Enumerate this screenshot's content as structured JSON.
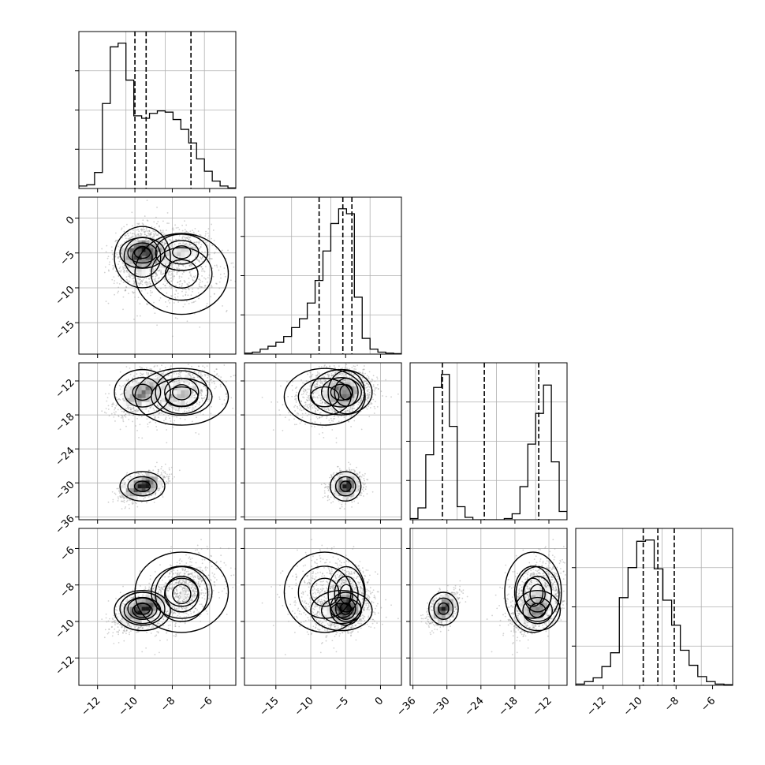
{
  "chart_data": {
    "type": "corner",
    "parameters": 4,
    "grid": true,
    "ranges": [
      [
        -13.0,
        -4.6
      ],
      [
        -19.5,
        3.0
      ],
      [
        -36.5,
        -8.8
      ],
      [
        -13.5,
        -4.9
      ]
    ],
    "ticks": [
      [
        -12,
        -10,
        -8,
        -6
      ],
      [
        -15,
        -10,
        -5,
        0
      ],
      [
        -36,
        -30,
        -24,
        -18,
        -12
      ],
      [
        -12,
        -10,
        -8,
        -6
      ]
    ],
    "tick_labels": [
      [
        "−12",
        "−10",
        "−8",
        "−6"
      ],
      [
        "−15",
        "−10",
        "−5",
        "0"
      ],
      [
        "−36",
        "−30",
        "−24",
        "−18",
        "−12"
      ],
      [
        "−12",
        "−10",
        "−8",
        "−6"
      ]
    ],
    "quantiles": [
      [
        -10.0,
        -9.4,
        -7.0
      ],
      [
        -8.8,
        -5.4,
        -4.1
      ],
      [
        -30.8,
        -23.4,
        -13.8
      ],
      [
        -9.8,
        -9.0,
        -8.1
      ]
    ],
    "histograms": [
      {
        "edges_start": -13.0,
        "edges_end": -4.6,
        "counts": [
          0.2,
          0.3,
          1.3,
          6.9,
          11.5,
          11.8,
          8.8,
          5.9,
          5.7,
          6.1,
          6.3,
          6.2,
          5.6,
          4.8,
          3.7,
          2.4,
          1.4,
          0.6,
          0.2,
          0.05
        ]
      },
      {
        "edges_start": -19.5,
        "edges_end": 3.0,
        "counts": [
          0.1,
          0.2,
          0.5,
          0.8,
          1.2,
          1.8,
          2.7,
          3.6,
          5.2,
          7.5,
          10.5,
          13.3,
          14.8,
          14.3,
          5.8,
          1.6,
          0.5,
          0.2,
          0.1,
          0.05
        ]
      },
      {
        "edges_start": -36.5,
        "edges_end": -8.8,
        "counts": [
          0.1,
          1.0,
          5.5,
          11.2,
          12.3,
          7.9,
          1.1,
          0.2,
          0.0,
          0.0,
          0.0,
          0.0,
          0.1,
          0.5,
          2.8,
          6.4,
          9.0,
          11.4,
          4.9,
          0.7
        ]
      },
      {
        "edges_start": -13.5,
        "edges_end": -4.9,
        "counts": [
          0.1,
          0.3,
          0.6,
          1.5,
          2.6,
          7.0,
          9.4,
          11.5,
          11.6,
          9.3,
          6.8,
          4.8,
          2.8,
          1.6,
          0.7,
          0.3,
          0.1,
          0.05
        ]
      }
    ],
    "clusters": [
      {
        "mean": [
          -9.6,
          -5.6,
          -14.0,
          -9.4
        ],
        "sd": [
          0.75,
          2.2,
          2.0,
          0.55
        ],
        "weight": 0.36
      },
      {
        "mean": [
          -7.5,
          -8.0,
          -14.8,
          -8.4
        ],
        "sd": [
          1.25,
          2.9,
          2.5,
          1.1
        ],
        "weight": 0.14
      },
      {
        "mean": [
          -9.6,
          -5.0,
          -30.6,
          -9.3
        ],
        "sd": [
          0.6,
          1.1,
          1.3,
          0.45
        ],
        "weight": 0.32
      },
      {
        "mean": [
          -7.5,
          -4.9,
          -14.0,
          -8.5
        ],
        "sd": [
          0.7,
          1.3,
          1.9,
          0.75
        ],
        "weight": 0.18
      }
    ]
  }
}
